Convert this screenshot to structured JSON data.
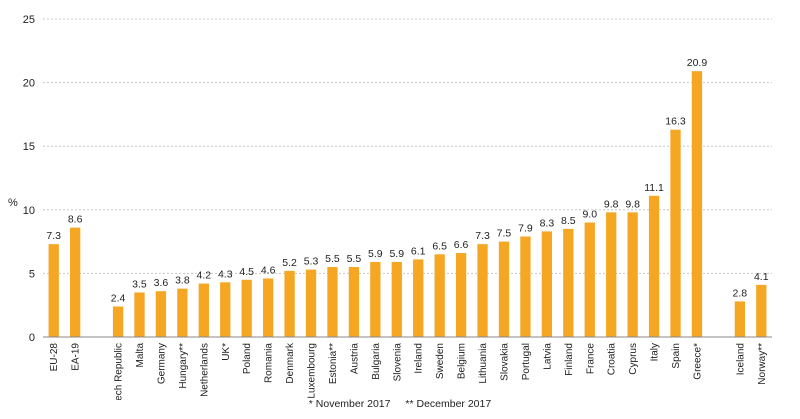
{
  "chart_data": {
    "type": "bar",
    "ylabel": "%",
    "ylim": [
      0,
      25
    ],
    "yticks": [
      0,
      5,
      10,
      15,
      20,
      25
    ],
    "grid": true,
    "bar_color": "#F5A623",
    "grid_color": "#C8C8C8",
    "groups": [
      [
        "EU-28",
        "EA-19"
      ],
      [
        "Czech Republic",
        "Malta",
        "Germany",
        "Hungary**",
        "Netherlands",
        "UK*",
        "Poland",
        "Romania",
        "Denmark",
        "Luxembourg",
        "Estonia**",
        "Austria",
        "Bulgaria",
        "Slovenia",
        "Ireland",
        "Sweden",
        "Belgium",
        "Lithuania",
        "Slovakia",
        "Portugal",
        "Latvia",
        "Finland",
        "France",
        "Croatia",
        "Cyprus",
        "Italy",
        "Spain",
        "Greece*"
      ],
      [
        "Iceland",
        "Norway**"
      ]
    ],
    "categories": [
      "EU-28",
      "EA-19",
      "Czech Republic",
      "Malta",
      "Germany",
      "Hungary**",
      "Netherlands",
      "UK*",
      "Poland",
      "Romania",
      "Denmark",
      "Luxembourg",
      "Estonia**",
      "Austria",
      "Bulgaria",
      "Slovenia",
      "Ireland",
      "Sweden",
      "Belgium",
      "Lithuania",
      "Slovakia",
      "Portugal",
      "Latvia",
      "Finland",
      "France",
      "Croatia",
      "Cyprus",
      "Italy",
      "Spain",
      "Greece*",
      "Iceland",
      "Norway**"
    ],
    "values": [
      7.3,
      8.6,
      2.4,
      3.5,
      3.6,
      3.8,
      4.2,
      4.3,
      4.5,
      4.6,
      5.2,
      5.3,
      5.5,
      5.5,
      5.9,
      5.9,
      6.1,
      6.5,
      6.6,
      7.3,
      7.5,
      7.9,
      8.3,
      8.5,
      9.0,
      9.8,
      9.8,
      11.1,
      16.3,
      20.9,
      2.8,
      4.1
    ],
    "value_labels": [
      "7.3",
      "8.6",
      "2.4",
      "3.5",
      "3.6",
      "3.8",
      "4.2",
      "4.3",
      "4.5",
      "4.6",
      "5.2",
      "5.3",
      "5.5",
      "5.5",
      "5.9",
      "5.9",
      "6.1",
      "6.5",
      "6.6",
      "7.3",
      "7.5",
      "7.9",
      "8.3",
      "8.5",
      "9.0",
      "9.8",
      "9.8",
      "11.1",
      "16.3",
      "20.9",
      "2.8",
      "4.1"
    ]
  },
  "footnotes": {
    "note1": "* November 2017",
    "note2": "** December 2017"
  }
}
